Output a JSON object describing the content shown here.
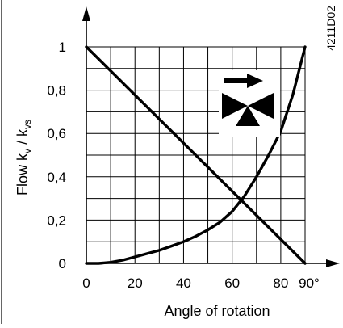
{
  "figure_code": "4211D02",
  "colors": {
    "ink": "#000000",
    "background": "#ffffff"
  },
  "chart_data": {
    "type": "line",
    "xlabel": "Angle of rotation",
    "ylabel": "Flow k",
    "ylabel_sub1": "v",
    "ylabel_mid": " / k",
    "ylabel_sub2": "vs",
    "x_ticks": [
      "0",
      "20",
      "40",
      "60",
      "80"
    ],
    "x_end_label": "90°",
    "y_ticks": [
      "0",
      "0,2",
      "0,4",
      "0,6",
      "0,8",
      "1"
    ],
    "xlim": [
      0,
      90
    ],
    "ylim": [
      0,
      1
    ],
    "grid": true,
    "series": [
      {
        "x": [
          0,
          90
        ],
        "y": [
          1,
          0
        ]
      },
      {
        "x": [
          0,
          5,
          10,
          15,
          20,
          25,
          30,
          35,
          40,
          45,
          50,
          55,
          60,
          65,
          70,
          75,
          80,
          85,
          90
        ],
        "y": [
          0,
          0,
          0.005,
          0.015,
          0.03,
          0.045,
          0.06,
          0.08,
          0.1,
          0.125,
          0.155,
          0.19,
          0.24,
          0.31,
          0.4,
          0.5,
          0.61,
          0.78,
          1.0
        ]
      }
    ],
    "icon": "valve-flow-direction-icon"
  }
}
